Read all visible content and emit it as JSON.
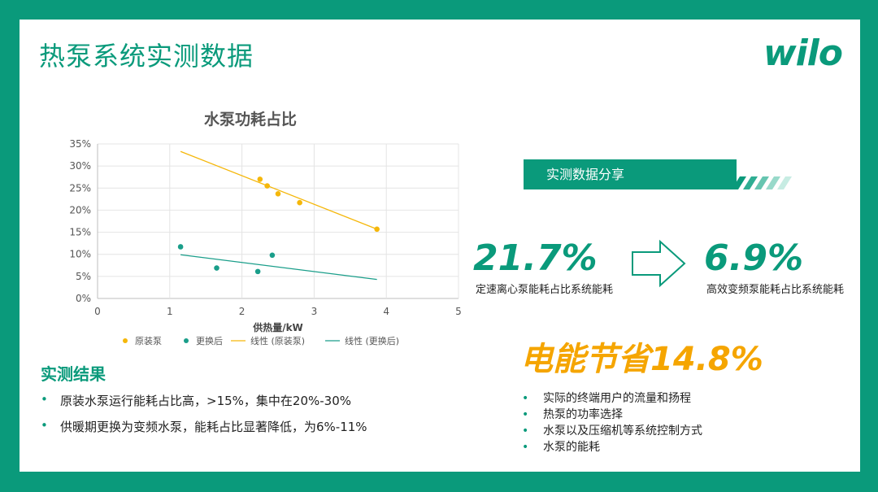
{
  "title": "热泵系统实测数据",
  "logo": "wilo",
  "banner": "实测数据分享",
  "metric_left": {
    "value": "21.7%",
    "caption": "定速离心泵能耗占比系统能耗"
  },
  "metric_right": {
    "value": "6.9%",
    "caption": "高效变频泵能耗占比系统能耗"
  },
  "saving": "电能节省14.8%",
  "results": {
    "title": "实测结果",
    "items": [
      "原装水泵运行能耗占比高，>15%，集中在20%-30%",
      "供暖期更换为变频水泵，能耗占比显著降低，为6%-11%"
    ]
  },
  "factors": [
    "实际的终端用户的流量和扬程",
    "热泵的功率选择",
    "水泵以及压缩机等系统控制方式",
    "水泵的能耗"
  ],
  "colors": {
    "brand": "#0a9a7b",
    "accent": "#f5a500"
  },
  "chart_data": {
    "type": "scatter",
    "title": "水泵功耗占比",
    "xlabel": "供热量/kW",
    "ylabel": "",
    "xlim": [
      0,
      5
    ],
    "ylim": [
      0,
      0.35
    ],
    "x_ticks": [
      "0",
      "1",
      "2",
      "3",
      "4",
      "5"
    ],
    "y_ticks": [
      "0%",
      "5%",
      "10%",
      "15%",
      "20%",
      "25%",
      "30%",
      "35%"
    ],
    "grid": true,
    "legend_position": "bottom",
    "series": [
      {
        "name": "原装泵",
        "color": "#f5b70a",
        "points": [
          [
            2.25,
            0.27
          ],
          [
            2.35,
            0.255
          ],
          [
            2.5,
            0.237
          ],
          [
            2.8,
            0.217
          ],
          [
            3.87,
            0.157
          ]
        ]
      },
      {
        "name": "更换后",
        "color": "#1a9e8a",
        "points": [
          [
            1.15,
            0.117
          ],
          [
            1.65,
            0.069
          ],
          [
            2.22,
            0.061
          ],
          [
            2.42,
            0.098
          ]
        ]
      }
    ],
    "trendlines": [
      {
        "name": "线性 (原装泵)",
        "color": "#f5b70a",
        "from": [
          1.15,
          0.333
        ],
        "to": [
          3.87,
          0.157
        ]
      },
      {
        "name": "线性 (更换后)",
        "color": "#1a9e8a",
        "from": [
          1.15,
          0.099
        ],
        "to": [
          3.87,
          0.043
        ]
      }
    ]
  }
}
